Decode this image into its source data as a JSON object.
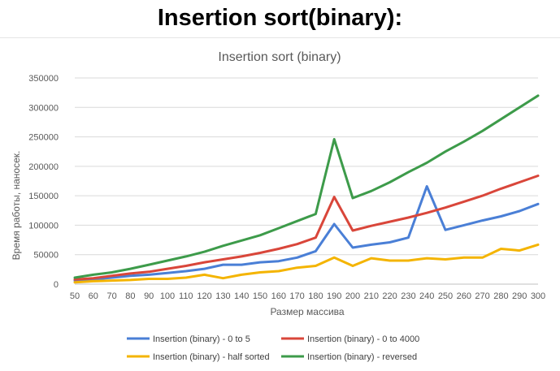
{
  "heading": "Insertion sort(binary):",
  "chart_data": {
    "type": "line",
    "title": "Insertion sort (binary)",
    "xlabel": "Размер массива",
    "ylabel": "Время работы, наносек.",
    "ylim": [
      0,
      350000
    ],
    "yticks": [
      "0",
      "50000",
      "100000",
      "150000",
      "200000",
      "250000",
      "300000",
      "350000"
    ],
    "grid": "horizontal",
    "legend": "bottom",
    "x": [
      50,
      60,
      70,
      80,
      90,
      100,
      110,
      120,
      130,
      140,
      150,
      160,
      170,
      180,
      190,
      200,
      210,
      220,
      230,
      240,
      250,
      260,
      270,
      280,
      290,
      300
    ],
    "series": [
      {
        "name": "Insertion (binary) - 0 to 5",
        "color": "#4a7fd6",
        "values": [
          6000,
          8000,
          11000,
          14000,
          16000,
          19000,
          22000,
          26000,
          33000,
          33000,
          37000,
          39000,
          45000,
          56000,
          102000,
          62000,
          67000,
          71000,
          79000,
          166000,
          92000,
          100000,
          108000,
          115000,
          124000,
          136000
        ]
      },
      {
        "name": "Insertion (binary) - 0 to 4000",
        "color": "#d9463a",
        "values": [
          8000,
          10000,
          14000,
          18000,
          21000,
          26000,
          31000,
          37000,
          42000,
          47000,
          53000,
          60000,
          68000,
          79000,
          148000,
          91000,
          99000,
          106000,
          113000,
          121000,
          130000,
          140000,
          150000,
          162000,
          173000,
          184000
        ]
      },
      {
        "name": "Insertion (binary) - half sorted",
        "color": "#f4b400",
        "values": [
          3000,
          5000,
          6000,
          7000,
          9000,
          9000,
          11000,
          16000,
          10000,
          16000,
          20000,
          22000,
          28000,
          31000,
          45000,
          31000,
          44000,
          40000,
          40000,
          44000,
          42000,
          45000,
          45000,
          60000,
          57000,
          67000
        ]
      },
      {
        "name": "Insertion (binary) - reversed",
        "color": "#3d9b4a",
        "values": [
          11000,
          16000,
          20000,
          26000,
          33000,
          40000,
          47000,
          55000,
          65000,
          74000,
          83000,
          95000,
          107000,
          119000,
          246000,
          146000,
          158000,
          173000,
          190000,
          206000,
          225000,
          242000,
          260000,
          280000,
          300000,
          320000
        ]
      }
    ]
  }
}
